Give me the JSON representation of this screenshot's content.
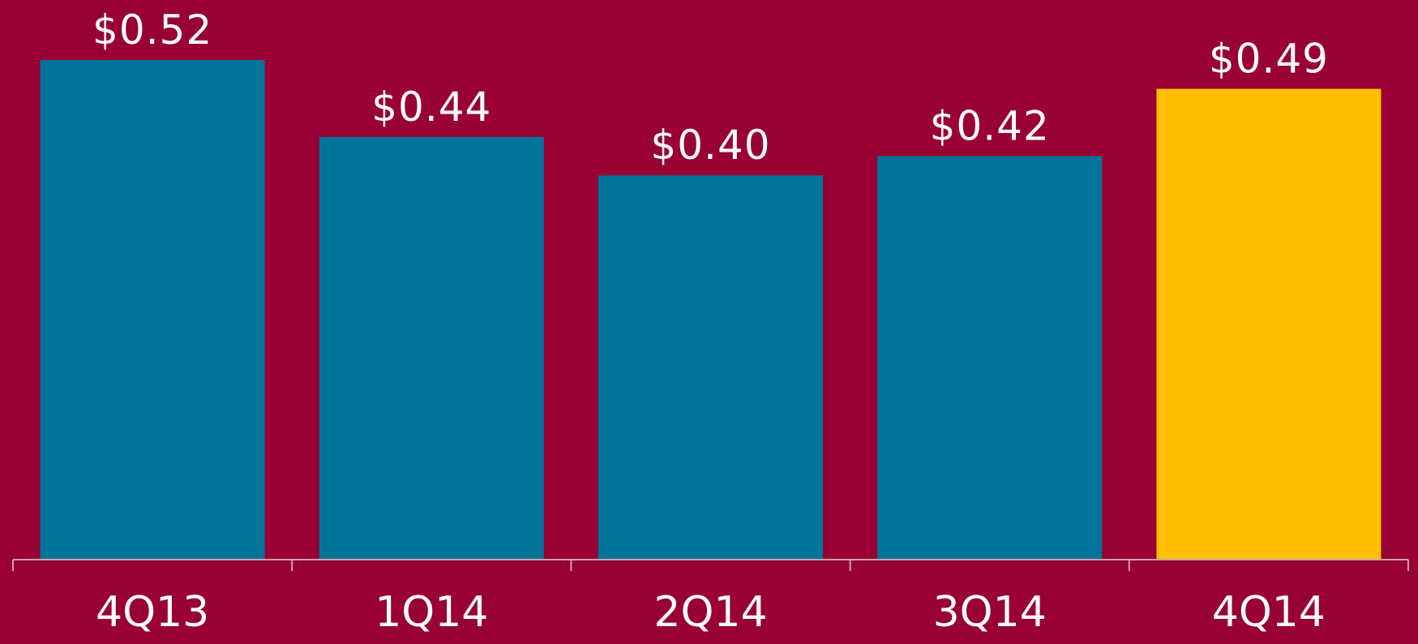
{
  "chart_data": {
    "type": "bar",
    "categories": [
      "4Q13",
      "1Q14",
      "2Q14",
      "3Q14",
      "4Q14"
    ],
    "values": [
      0.52,
      0.44,
      0.4,
      0.42,
      0.49
    ],
    "data_labels": [
      "$0.52",
      "$0.44",
      "$0.40",
      "$0.42",
      "$0.49"
    ],
    "title": "",
    "xlabel": "",
    "ylabel": "",
    "ylim": [
      0,
      0.52
    ],
    "grid": false,
    "legend": "none",
    "colors": {
      "background": "#990033",
      "bar": "#007599",
      "highlight_bar": "#FFBF00",
      "axis": "#c9a0ac",
      "text": "#ffffff"
    },
    "highlight_index": 4
  }
}
